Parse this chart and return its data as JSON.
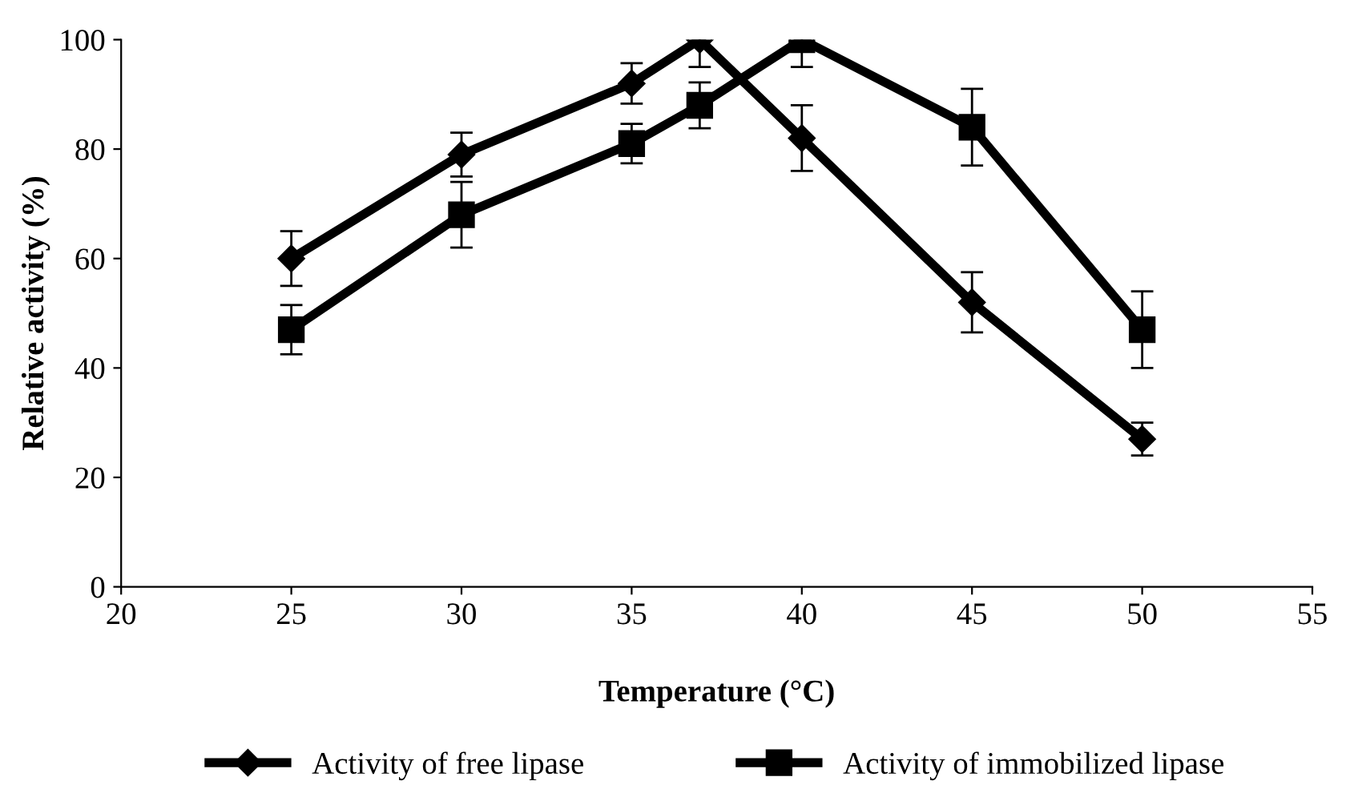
{
  "chart_data": {
    "type": "line",
    "xlabel": "Temperature (°C)",
    "ylabel": "Relative activity (%)",
    "x": [
      25,
      30,
      35,
      37,
      40,
      45,
      50
    ],
    "series": [
      {
        "name": "Activity of free lipase",
        "color": "#000000",
        "marker": "diamond",
        "values": [
          60,
          79,
          92,
          100,
          82,
          52,
          27
        ],
        "errors": [
          5,
          4,
          3.7,
          5,
          6,
          5.5,
          3
        ]
      },
      {
        "name": "Activity of immobilized lipase",
        "color": "#000000",
        "marker": "square",
        "values": [
          47,
          68,
          81,
          88,
          100,
          84,
          47
        ],
        "errors": [
          4.5,
          6,
          3.6,
          4.2,
          5,
          7,
          7
        ]
      }
    ],
    "xlim": [
      20,
      55
    ],
    "xticks": [
      20,
      25,
      30,
      35,
      40,
      45,
      50,
      55
    ],
    "ylim": [
      0,
      100
    ],
    "yticks": [
      0,
      20,
      40,
      60,
      80,
      100
    ],
    "grid": false,
    "legend": "bottom",
    "line_style": "solid"
  }
}
